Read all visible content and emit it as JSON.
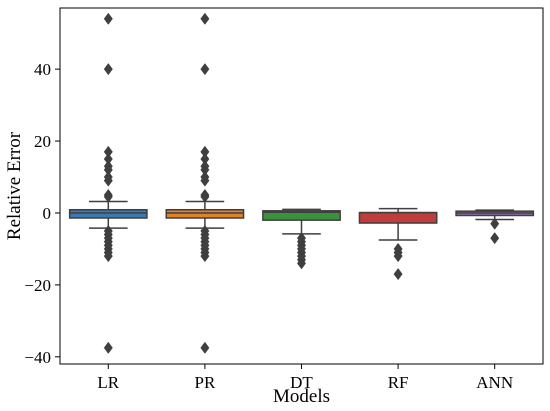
{
  "chart_data": {
    "type": "box",
    "xlabel": "Models",
    "ylabel": "Relative Error",
    "ylim": [
      -42,
      57
    ],
    "yticks": [
      -40,
      -20,
      0,
      20,
      40
    ],
    "grid": false,
    "categories": [
      "LR",
      "PR",
      "DT",
      "RF",
      "ANN"
    ],
    "series": [
      {
        "name": "LR",
        "color": "#3a7ab0",
        "whisker_low": -4.2,
        "q1": -1.4,
        "median": 0.0,
        "q3": 0.9,
        "whisker_high": 3.2,
        "outliers": [
          54,
          40,
          17,
          15,
          13,
          12,
          10,
          9,
          5,
          4.5,
          -5,
          -6,
          -7,
          -8,
          -9,
          -10,
          -11,
          -12,
          -37.5
        ]
      },
      {
        "name": "PR",
        "color": "#e1812c",
        "whisker_low": -4.2,
        "q1": -1.4,
        "median": 0.0,
        "q3": 0.9,
        "whisker_high": 3.2,
        "outliers": [
          54,
          40,
          17,
          15,
          13,
          12,
          10,
          9,
          5,
          4.5,
          -5,
          -6,
          -7,
          -8,
          -9,
          -10,
          -11,
          -12,
          -37.5
        ]
      },
      {
        "name": "DT",
        "color": "#3a923a",
        "whisker_low": -5.8,
        "q1": -2.0,
        "median": 0.2,
        "q3": 0.6,
        "whisker_high": 1.0,
        "outliers": [
          -7,
          -8,
          -9,
          -10,
          -11,
          -12,
          -13,
          -14
        ]
      },
      {
        "name": "RF",
        "color": "#c03d3e",
        "whisker_low": -7.5,
        "q1": -2.8,
        "median": 0.1,
        "q3": 0.1,
        "whisker_high": 1.2,
        "outliers": [
          -10,
          -11,
          -12,
          -17
        ]
      },
      {
        "name": "ANN",
        "color": "#9372b2",
        "whisker_low": -1.8,
        "q1": -0.7,
        "median": 0.0,
        "q3": 0.5,
        "whisker_high": 0.8,
        "outliers": [
          -3,
          -7
        ]
      }
    ]
  }
}
